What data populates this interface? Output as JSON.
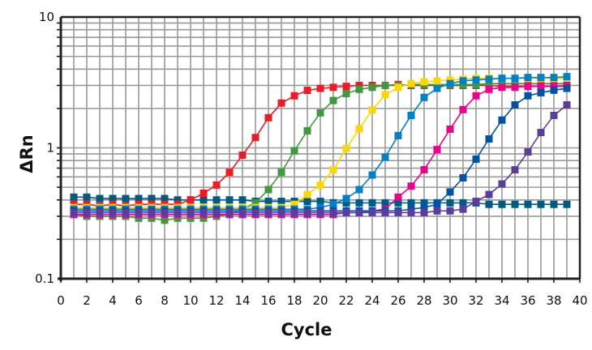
{
  "chart_data": {
    "type": "line",
    "title": "",
    "xlabel": "Cycle",
    "ylabel": "ΔRn",
    "xlim": [
      0,
      40
    ],
    "ylim": [
      0.1,
      10
    ],
    "yscale": "log",
    "grid": true,
    "legend": "none",
    "x_ticks": [
      "0",
      "2",
      "4",
      "6",
      "8",
      "10",
      "12",
      "14",
      "16",
      "18",
      "20",
      "22",
      "24",
      "26",
      "28",
      "30",
      "32",
      "34",
      "36",
      "38",
      "40"
    ],
    "y_ticks": [
      "0.1",
      "1",
      "10"
    ],
    "x": [
      1,
      2,
      3,
      4,
      5,
      6,
      7,
      8,
      9,
      10,
      11,
      12,
      13,
      14,
      15,
      16,
      17,
      18,
      19,
      20,
      21,
      22,
      23,
      24,
      25,
      26,
      27,
      28,
      29,
      30,
      31,
      32,
      33,
      34,
      35,
      36,
      37,
      38,
      39
    ],
    "series": [
      {
        "color": "#005a82",
        "values": [
          0.42,
          0.42,
          0.41,
          0.41,
          0.41,
          0.41,
          0.41,
          0.41,
          0.4,
          0.4,
          0.4,
          0.4,
          0.4,
          0.4,
          0.39,
          0.39,
          0.39,
          0.39,
          0.39,
          0.39,
          0.38,
          0.38,
          0.38,
          0.38,
          0.38,
          0.38,
          0.38,
          0.38,
          0.38,
          0.38,
          0.38,
          0.38,
          0.37,
          0.37,
          0.37,
          0.37,
          0.37,
          0.37,
          0.37
        ]
      },
      {
        "color": "#ed1c24",
        "values": [
          0.37,
          0.37,
          0.36,
          0.37,
          0.36,
          0.37,
          0.37,
          0.37,
          0.37,
          0.4,
          0.45,
          0.52,
          0.65,
          0.88,
          1.2,
          1.7,
          2.2,
          2.5,
          2.75,
          2.85,
          2.9,
          2.95,
          3.0,
          3.0,
          3.0,
          3.05,
          3.0,
          3.0,
          3.0,
          3.0,
          3.0,
          3.0,
          3.0,
          2.95,
          2.95,
          2.95,
          2.95,
          2.95,
          2.95
        ]
      },
      {
        "color": "#3f9a3c",
        "values": [
          0.31,
          0.3,
          0.3,
          0.3,
          0.3,
          0.29,
          0.29,
          0.28,
          0.29,
          0.29,
          0.29,
          0.3,
          0.31,
          0.34,
          0.38,
          0.48,
          0.65,
          0.95,
          1.35,
          1.85,
          2.3,
          2.6,
          2.8,
          2.9,
          3.0,
          3.0,
          3.05,
          3.05,
          3.05,
          3.05,
          3.05,
          3.05,
          3.1,
          3.1,
          3.1,
          3.1,
          3.1,
          3.1,
          3.1
        ]
      },
      {
        "color": "#ffd700",
        "values": [
          0.35,
          0.35,
          0.35,
          0.35,
          0.35,
          0.35,
          0.35,
          0.35,
          0.35,
          0.35,
          0.35,
          0.35,
          0.35,
          0.35,
          0.35,
          0.35,
          0.35,
          0.37,
          0.44,
          0.52,
          0.68,
          0.99,
          1.4,
          1.95,
          2.55,
          2.9,
          3.1,
          3.2,
          3.25,
          3.3,
          3.35,
          3.4,
          3.4,
          3.4,
          3.4,
          3.4,
          3.4,
          3.4,
          3.4
        ]
      },
      {
        "color": "#0080c6",
        "values": [
          0.34,
          0.34,
          0.34,
          0.34,
          0.34,
          0.34,
          0.34,
          0.34,
          0.34,
          0.34,
          0.34,
          0.34,
          0.34,
          0.34,
          0.34,
          0.34,
          0.34,
          0.34,
          0.34,
          0.35,
          0.37,
          0.41,
          0.48,
          0.62,
          0.85,
          1.24,
          1.77,
          2.43,
          2.85,
          3.1,
          3.25,
          3.3,
          3.35,
          3.4,
          3.4,
          3.45,
          3.45,
          3.45,
          3.5
        ]
      },
      {
        "color": "#ec008c",
        "values": [
          0.31,
          0.31,
          0.31,
          0.31,
          0.31,
          0.31,
          0.31,
          0.31,
          0.31,
          0.31,
          0.31,
          0.31,
          0.31,
          0.31,
          0.31,
          0.31,
          0.31,
          0.31,
          0.31,
          0.31,
          0.31,
          0.32,
          0.32,
          0.33,
          0.34,
          0.42,
          0.51,
          0.68,
          0.97,
          1.39,
          1.96,
          2.5,
          2.8,
          2.9,
          2.9,
          2.95,
          2.95,
          2.95,
          3.0
        ]
      },
      {
        "color": "#0052a5",
        "values": [
          0.33,
          0.33,
          0.33,
          0.33,
          0.33,
          0.33,
          0.33,
          0.33,
          0.33,
          0.33,
          0.33,
          0.33,
          0.33,
          0.33,
          0.33,
          0.33,
          0.33,
          0.33,
          0.33,
          0.33,
          0.33,
          0.33,
          0.33,
          0.33,
          0.33,
          0.33,
          0.34,
          0.35,
          0.37,
          0.46,
          0.59,
          0.82,
          1.17,
          1.63,
          2.13,
          2.5,
          2.64,
          2.76,
          2.85
        ]
      },
      {
        "color": "#5b3e9b",
        "values": [
          0.32,
          0.32,
          0.32,
          0.32,
          0.32,
          0.32,
          0.32,
          0.32,
          0.32,
          0.32,
          0.32,
          0.32,
          0.32,
          0.32,
          0.32,
          0.32,
          0.32,
          0.32,
          0.32,
          0.32,
          0.32,
          0.32,
          0.32,
          0.32,
          0.32,
          0.32,
          0.32,
          0.32,
          0.33,
          0.33,
          0.34,
          0.39,
          0.44,
          0.53,
          0.68,
          0.93,
          1.31,
          1.77,
          2.13
        ]
      }
    ]
  }
}
